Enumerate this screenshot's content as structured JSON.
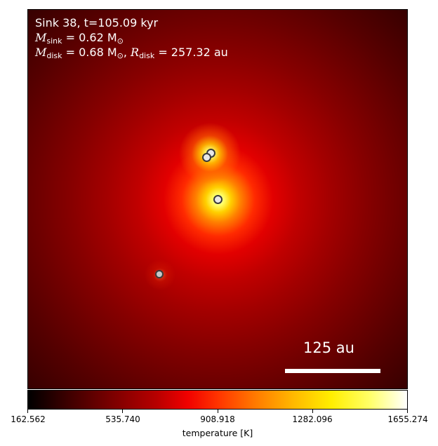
{
  "annotation": {
    "line1": "Sink 38, t=105.09 kyr",
    "msink_symbol": "M",
    "msink_sub": "sink",
    "msink_value": "= 0.62 M",
    "msun_sub": "⊙",
    "mdisk_symbol": "M",
    "mdisk_sub": "disk",
    "mdisk_value": "= 0.68 M",
    "rdisk_symbol": "R",
    "rdisk_sub": "disk",
    "rdisk_value": "= 257.32 au"
  },
  "scale_bar": {
    "label": "125 au"
  },
  "colorbar": {
    "label": "temperature [K]",
    "ticks": [
      "162.562",
      "535.740",
      "908.918",
      "1282.096",
      "1655.274"
    ],
    "colors": [
      "#000000",
      "#7a0000",
      "#f00000",
      "#ffb800",
      "#ffffff"
    ]
  },
  "sinks": [
    {
      "name": "sink-top-a"
    },
    {
      "name": "sink-top-b"
    },
    {
      "name": "sink-center"
    },
    {
      "name": "sink-lower-left"
    }
  ]
}
